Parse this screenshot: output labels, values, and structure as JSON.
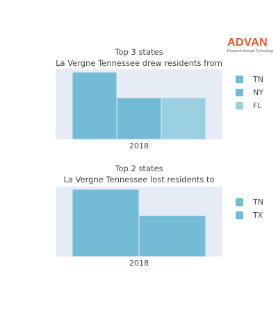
{
  "brand": {
    "name": "ADVAN",
    "tagline": "Research through Technology"
  },
  "chart_data": [
    {
      "type": "bar",
      "title": "Top 3 states",
      "subtitle": "La Vergne Tennessee drew residents from",
      "categories": [
        "2018"
      ],
      "series": [
        {
          "name": "TN",
          "values": [
            100
          ],
          "color": "#74bcd6"
        },
        {
          "name": "NY",
          "values": [
            62
          ],
          "color": "#74bcd6"
        },
        {
          "name": "FL",
          "values": [
            62
          ],
          "color": "#9ad0e2"
        }
      ],
      "ylim": [
        0,
        100
      ],
      "grid": false,
      "legend": "right"
    },
    {
      "type": "bar",
      "title": "Top 2 states",
      "subtitle": "La Vergne Tennessee lost residents to",
      "categories": [
        "2018"
      ],
      "series": [
        {
          "name": "TN",
          "values": [
            100
          ],
          "color": "#74bcd6"
        },
        {
          "name": "TX",
          "values": [
            61
          ],
          "color": "#74bcd6"
        }
      ],
      "ylim": [
        0,
        100
      ],
      "grid": false,
      "legend": "right"
    }
  ]
}
